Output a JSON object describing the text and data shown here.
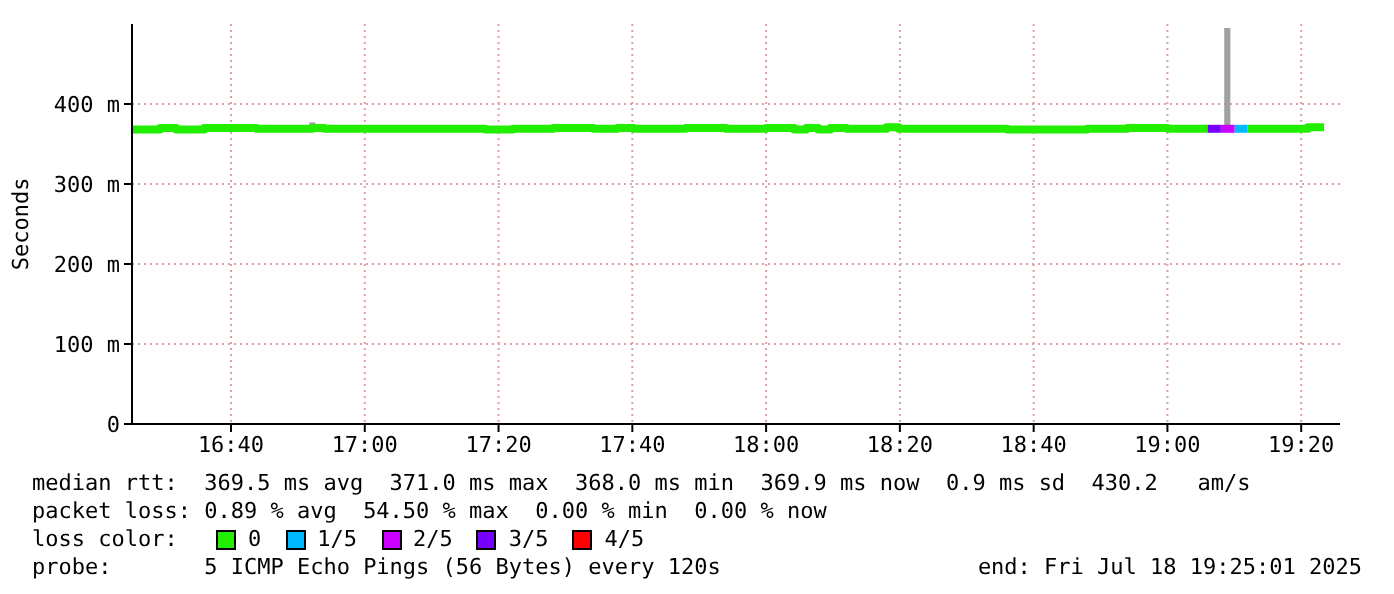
{
  "chart_data": {
    "type": "step",
    "ylabel": "Seconds",
    "legend_title": "loss color:",
    "xlim": [
      16.42,
      19.43
    ],
    "ylim": [
      0,
      500
    ],
    "xticks": [
      {
        "value": 16.6667,
        "label": "16:40"
      },
      {
        "value": 17,
        "label": "17:00"
      },
      {
        "value": 17.3333,
        "label": "17:20"
      },
      {
        "value": 17.6667,
        "label": "17:40"
      },
      {
        "value": 18,
        "label": "18:00"
      },
      {
        "value": 18.3333,
        "label": "18:20"
      },
      {
        "value": 18.6667,
        "label": "18:40"
      },
      {
        "value": 19,
        "label": "19:00"
      },
      {
        "value": 19.3333,
        "label": "19:20"
      }
    ],
    "yticks": [
      0,
      {
        "value": 100,
        "label": "100 m"
      },
      {
        "value": 200,
        "label": "200 m"
      },
      {
        "value": 300,
        "label": "300 m"
      },
      {
        "value": 400,
        "label": "400 m"
      }
    ],
    "grid": true,
    "legend": "bottom",
    "line_style": "solid",
    "series": [
      {
        "name": "0",
        "color": "#22ee00",
        "x": [
          16.42,
          16.49,
          16.53,
          16.6,
          16.73,
          16.87,
          16.9,
          17.3,
          17.37,
          17.47,
          17.57,
          17.63,
          17.67,
          17.8,
          17.9,
          18,
          18.07,
          18.1,
          18.13,
          18.16,
          18.2,
          18.3,
          18.33,
          18.6,
          18.8,
          18.9,
          19.0,
          19.1
        ],
        "values": [
          368,
          370,
          368,
          370,
          369,
          370,
          369,
          368,
          369,
          370,
          369,
          370,
          369,
          370,
          369,
          370,
          368,
          370,
          368,
          370,
          369,
          371,
          369,
          368,
          369,
          370,
          369,
          369
        ]
      },
      {
        "name": "1/5",
        "color": "#00b8ff",
        "x": [
          19.167,
          19.2
        ],
        "values": [
          369,
          369
        ]
      },
      {
        "name": "2/5",
        "color": "#cc00ff",
        "x": [
          19.133,
          19.167
        ],
        "values": [
          369,
          369
        ]
      },
      {
        "name": "3/5",
        "color": "#7700ff",
        "x": [
          19.1,
          19.133
        ],
        "values": [
          369,
          369
        ]
      },
      {
        "name": "4/5",
        "color": "#ff0000"
      },
      {
        "color": "#22ee00",
        "x": [
          19.2,
          19.35,
          19.39
        ],
        "values": [
          369,
          371,
          371
        ]
      },
      {
        "type": "bar",
        "color": "#a0a0a0",
        "x": [
          16.87,
          19.15
        ],
        "base": [
          372,
          370
        ],
        "values": [
          5,
          125
        ]
      }
    ],
    "annotations": [
      "median rtt:  369.5 ms avg  371.0 ms max  368.0 ms min  369.9 ms now  0.9 ms sd  430.2   am/s",
      "packet loss: 0.89 % avg  54.50 % max  0.00 % min  0.00 % now",
      "probe:       5 ICMP Echo Pings (56 Bytes) every 120s",
      "end: Fri Jul 18 19:25:01 2025"
    ]
  }
}
